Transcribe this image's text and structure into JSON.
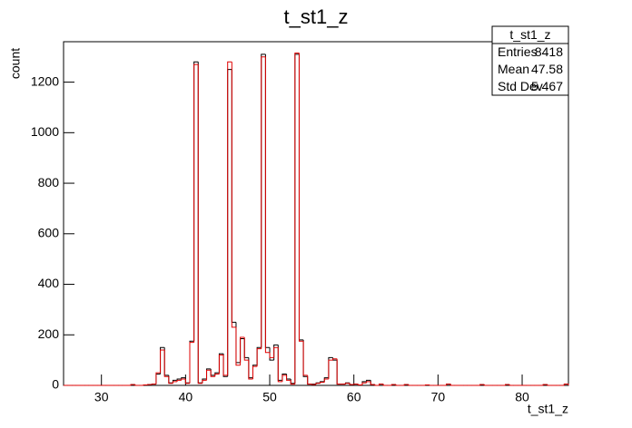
{
  "chart_data": {
    "type": "histogram",
    "title": "t_st1_z",
    "xlabel": "t_st1_z",
    "ylabel": "count",
    "xlim": [
      25.5,
      85.5
    ],
    "ylim": [
      0,
      1360
    ],
    "xticks": [
      30,
      40,
      50,
      60,
      70,
      80
    ],
    "yticks": [
      0,
      200,
      400,
      600,
      800,
      1000,
      1200
    ],
    "bins": [
      25.5,
      26,
      26.5,
      27,
      27.5,
      28,
      28.5,
      29,
      29.5,
      30,
      30.5,
      31,
      31.5,
      32,
      32.5,
      33,
      33.5,
      34,
      34.5,
      35,
      35.5,
      36,
      36.5,
      37,
      37.5,
      38,
      38.5,
      39,
      39.5,
      40,
      40.5,
      41,
      41.5,
      42,
      42.5,
      43,
      43.5,
      44,
      44.5,
      45,
      45.5,
      46,
      46.5,
      47,
      47.5,
      48,
      48.5,
      49,
      49.5,
      50,
      50.5,
      51,
      51.5,
      52,
      52.5,
      53,
      53.5,
      54,
      54.5,
      55,
      55.5,
      56,
      56.5,
      57,
      57.5,
      58,
      58.5,
      59,
      59.5,
      60,
      60.5,
      61,
      61.5,
      62,
      62.5,
      63,
      63.5,
      64,
      64.5,
      65,
      65.5,
      66,
      66.5,
      67,
      67.5,
      68,
      68.5,
      69,
      69.5,
      70,
      70.5,
      71,
      71.5,
      72,
      72.5,
      73,
      73.5,
      74,
      74.5,
      75,
      75.5,
      76,
      76.5,
      77,
      77.5,
      78,
      78.5,
      79,
      79.5,
      80,
      80.5,
      81,
      81.5,
      82,
      82.5,
      83,
      83.5,
      84,
      84.5,
      85,
      85.5
    ],
    "series": [
      {
        "name": "black",
        "color": "#000000",
        "values": [
          0,
          0,
          0,
          0,
          0,
          0,
          0,
          0,
          0,
          0,
          0,
          0,
          0,
          0,
          0,
          0,
          3,
          0,
          0,
          2,
          3,
          5,
          45,
          150,
          40,
          10,
          20,
          25,
          30,
          10,
          175,
          1280,
          10,
          25,
          65,
          40,
          50,
          125,
          35,
          1250,
          250,
          90,
          185,
          110,
          30,
          80,
          150,
          1310,
          150,
          100,
          160,
          20,
          45,
          25,
          8,
          1310,
          180,
          35,
          5,
          5,
          10,
          15,
          30,
          110,
          100,
          5,
          5,
          10,
          3,
          5,
          2,
          15,
          20,
          3,
          0,
          5,
          0,
          0,
          3,
          0,
          0,
          3,
          0,
          0,
          0,
          0,
          2,
          0,
          0,
          0,
          0,
          5,
          0,
          0,
          0,
          0,
          0,
          0,
          0,
          3,
          0,
          0,
          0,
          0,
          0,
          3,
          0,
          0,
          0,
          0,
          0,
          0,
          0,
          0,
          3,
          0,
          0,
          0,
          0,
          5
        ]
      },
      {
        "name": "red",
        "color": "#e00000",
        "values": [
          0,
          0,
          0,
          0,
          0,
          0,
          0,
          0,
          0,
          0,
          0,
          0,
          0,
          0,
          0,
          0,
          3,
          0,
          0,
          2,
          3,
          5,
          50,
          140,
          35,
          8,
          15,
          20,
          25,
          8,
          170,
          1270,
          8,
          20,
          60,
          35,
          45,
          120,
          40,
          1280,
          230,
          80,
          190,
          100,
          25,
          75,
          145,
          1300,
          130,
          110,
          150,
          15,
          40,
          20,
          5,
          1315,
          175,
          40,
          5,
          3,
          8,
          12,
          25,
          100,
          105,
          5,
          5,
          8,
          3,
          5,
          2,
          10,
          15,
          3,
          0,
          5,
          0,
          0,
          3,
          0,
          0,
          3,
          0,
          0,
          0,
          0,
          2,
          0,
          0,
          0,
          0,
          5,
          0,
          0,
          0,
          0,
          0,
          0,
          0,
          3,
          0,
          0,
          0,
          0,
          0,
          3,
          0,
          0,
          0,
          0,
          0,
          0,
          0,
          0,
          3,
          0,
          0,
          0,
          0,
          5
        ]
      }
    ],
    "stats": {
      "title": "t_st1_z",
      "rows": [
        [
          "Entries",
          8418
        ],
        [
          "Mean",
          47.58
        ],
        [
          "Std Dev",
          5.467
        ]
      ]
    }
  }
}
